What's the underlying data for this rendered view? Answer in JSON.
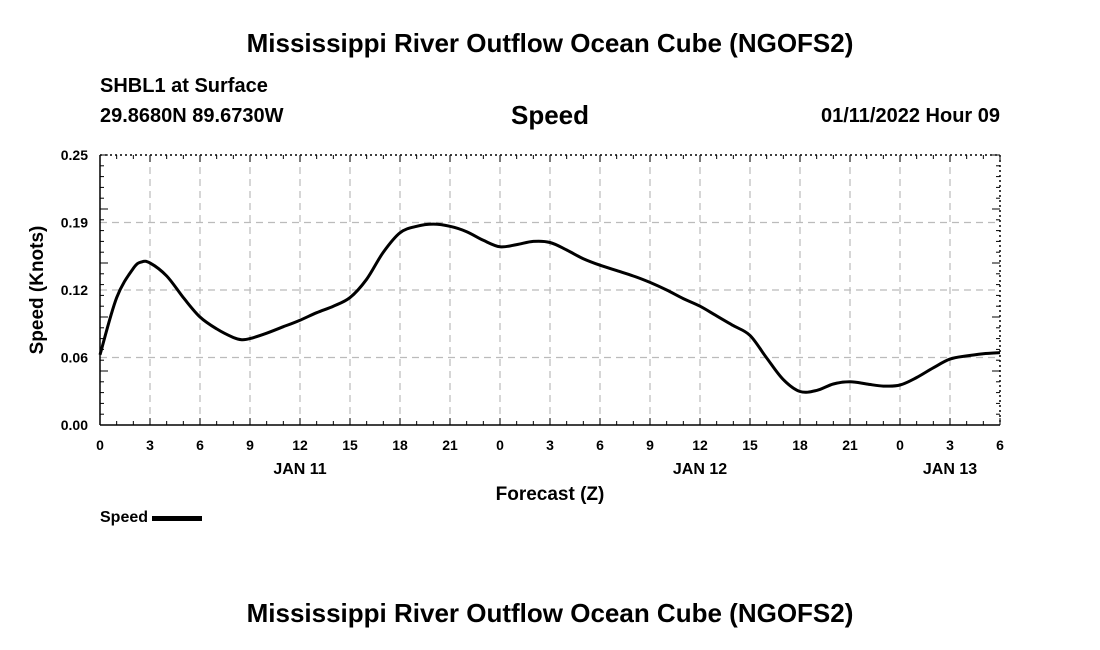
{
  "header": {
    "title": "Mississippi River Outflow Ocean Cube (NGOFS2)",
    "station": "SHBL1 at Surface",
    "coordinates": "29.8680N  89.6730W",
    "datetime": "01/11/2022 Hour 09",
    "subtitle": "Speed"
  },
  "footer": {
    "title": "Mississippi River Outflow Ocean Cube (NGOFS2)"
  },
  "legend": {
    "label": "Speed",
    "color": "#000000"
  },
  "chart_data": {
    "type": "line",
    "title": "Speed",
    "xlabel": "Forecast (Z)",
    "ylabel": "Speed (Knots)",
    "xlim": [
      0,
      54
    ],
    "ylim": [
      0,
      0.25
    ],
    "y_ticks": [
      "0.00",
      "0.06",
      "0.12",
      "0.19",
      "0.25"
    ],
    "y_tick_values": [
      0,
      0.0625,
      0.125,
      0.1875,
      0.25
    ],
    "x_ticks": [
      "0",
      "3",
      "6",
      "9",
      "12",
      "15",
      "18",
      "21",
      "0",
      "3",
      "6",
      "9",
      "12",
      "15",
      "18",
      "21",
      "0",
      "3",
      "6"
    ],
    "x_tick_values": [
      0,
      3,
      6,
      9,
      12,
      15,
      18,
      21,
      24,
      27,
      30,
      33,
      36,
      39,
      42,
      45,
      48,
      51,
      54
    ],
    "date_labels": [
      {
        "label": "JAN 11",
        "x": 12
      },
      {
        "label": "JAN 12",
        "x": 36
      },
      {
        "label": "JAN 13",
        "x": 51
      }
    ],
    "grid": true,
    "series": [
      {
        "name": "Speed",
        "color": "#000000",
        "x": [
          0,
          1,
          2,
          2.5,
          3,
          4,
          5,
          6,
          7,
          8,
          8.5,
          9,
          10,
          11,
          12,
          13,
          14,
          15,
          16,
          17,
          18,
          19,
          20,
          21,
          22,
          23,
          24,
          25,
          26,
          27,
          28,
          29,
          30,
          31,
          32,
          33,
          34,
          35,
          36,
          37,
          38,
          39,
          40,
          41,
          42,
          43,
          44,
          45,
          46,
          47,
          48,
          49,
          50,
          51,
          52,
          53,
          54
        ],
        "values": [
          0.065,
          0.118,
          0.145,
          0.151,
          0.15,
          0.138,
          0.118,
          0.1,
          0.089,
          0.081,
          0.079,
          0.08,
          0.085,
          0.091,
          0.097,
          0.104,
          0.11,
          0.118,
          0.135,
          0.16,
          0.178,
          0.184,
          0.186,
          0.184,
          0.179,
          0.171,
          0.165,
          0.167,
          0.17,
          0.169,
          0.162,
          0.154,
          0.148,
          0.143,
          0.138,
          0.132,
          0.125,
          0.117,
          0.11,
          0.101,
          0.092,
          0.083,
          0.062,
          0.042,
          0.031,
          0.032,
          0.038,
          0.04,
          0.038,
          0.036,
          0.037,
          0.044,
          0.053,
          0.061,
          0.064,
          0.066,
          0.067
        ]
      }
    ]
  }
}
